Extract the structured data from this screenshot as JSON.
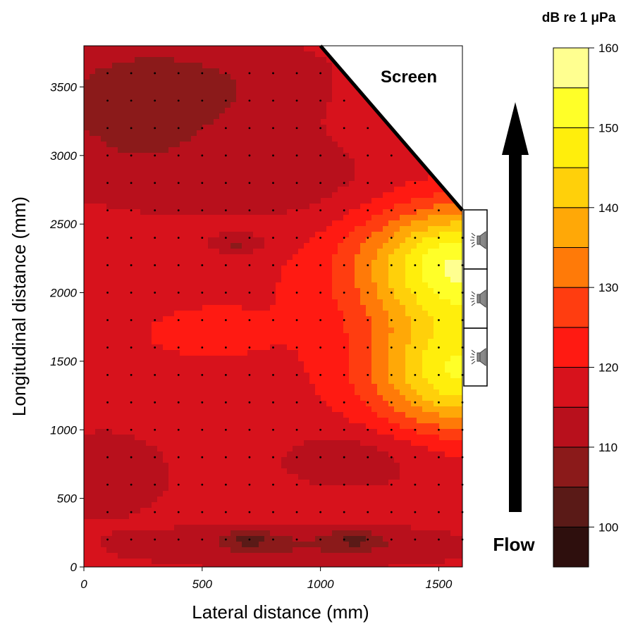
{
  "chart_data": {
    "type": "heatmap",
    "title": "",
    "xlabel": "Lateral distance (mm)",
    "ylabel": "Longitudinal distance (mm)",
    "xlim": [
      0,
      1600
    ],
    "ylim": [
      0,
      3800
    ],
    "xticks": [
      "0",
      "500",
      "1000",
      "1500"
    ],
    "xtick_values": [
      0,
      500,
      1000,
      1500
    ],
    "yticks": [
      "0",
      "500",
      "1000",
      "1500",
      "2000",
      "2500",
      "3000",
      "3500"
    ],
    "ytick_values": [
      0,
      500,
      1000,
      1500,
      2000,
      2500,
      3000,
      3500
    ],
    "colorbar": {
      "title": "dB re 1  μPa",
      "range": [
        95,
        160
      ],
      "levels": [
        95,
        100,
        105,
        110,
        115,
        120,
        125,
        130,
        135,
        140,
        145,
        150,
        155,
        160
      ],
      "level_colors": [
        "#2e0f0d",
        "#5a1a17",
        "#8b1a1a",
        "#b8101c",
        "#d7121c",
        "#ff1a12",
        "#ff3d10",
        "#ff7a08",
        "#ffa807",
        "#ffd00a",
        "#ffee0c",
        "#ffff28",
        "#ffff90"
      ],
      "tick_labels": [
        "100",
        "110",
        "120",
        "130",
        "140",
        "150",
        "160"
      ],
      "tick_values": [
        100,
        110,
        120,
        130,
        140,
        150,
        160
      ]
    },
    "grid_x": [
      0,
      100,
      200,
      300,
      400,
      500,
      600,
      700,
      800,
      900,
      1000,
      1100,
      1200,
      1300,
      1400,
      1500,
      1600
    ],
    "grid_y": [
      200,
      400,
      600,
      800,
      1000,
      1200,
      1400,
      1600,
      1800,
      2000,
      2200,
      2400,
      2600,
      2800,
      3000,
      3200,
      3400,
      3600
    ],
    "sources": [
      {
        "x": 1600,
        "y": 2200,
        "level_dB": 158
      },
      {
        "x": 1600,
        "y": 1400,
        "level_dB": 152
      }
    ],
    "local_maximum": {
      "x": 500,
      "y": 1700,
      "level_dB": 127
    },
    "cold_spots": [
      {
        "x": 700,
        "y": 200,
        "level_dB": 98
      },
      {
        "x": 1150,
        "y": 200,
        "level_dB": 98
      },
      {
        "x": 650,
        "y": 2350,
        "level_dB": 107
      }
    ],
    "screen_line": [
      {
        "x": 1000,
        "y": 3800
      },
      {
        "x": 1600,
        "y": 2600
      }
    ],
    "masked_region": "screen",
    "annotations": [
      "Screen",
      "Flow"
    ],
    "flow_direction": "up"
  }
}
